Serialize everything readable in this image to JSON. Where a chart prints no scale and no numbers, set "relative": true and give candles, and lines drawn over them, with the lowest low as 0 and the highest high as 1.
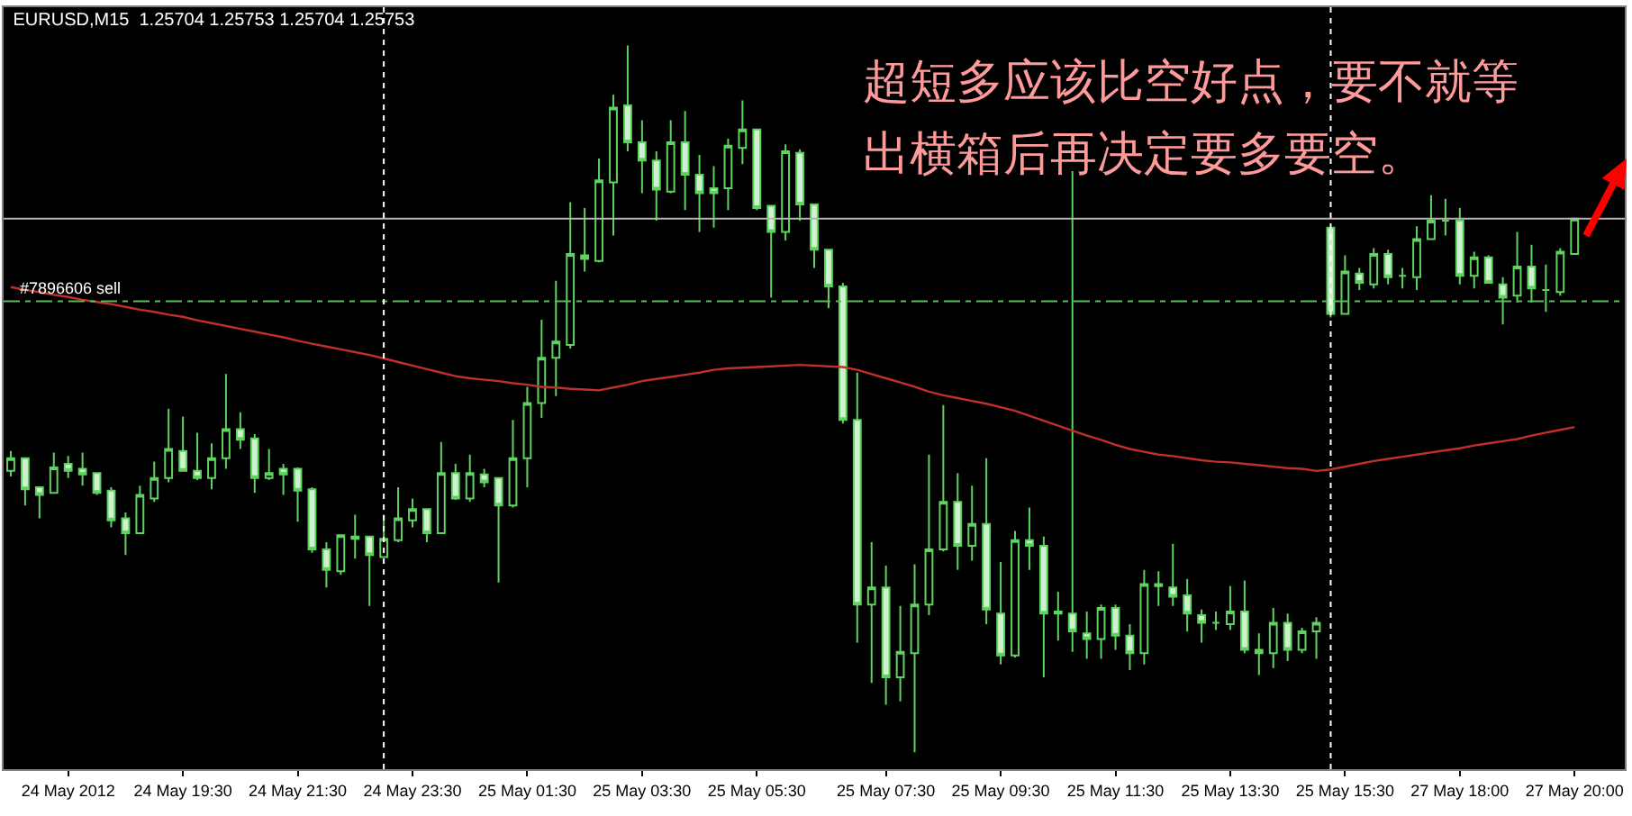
{
  "chart_data": {
    "type": "candlestick",
    "relative": true,
    "title": "EURUSD,M15  1.25704 1.25753 1.25704 1.25753",
    "color": "#5fd35f",
    "categories": [
      null,
      null,
      null,
      null,
      "24 May 2012",
      null,
      null,
      null,
      null,
      null,
      null,
      null,
      "24 May 19:30",
      null,
      null,
      null,
      null,
      null,
      null,
      null,
      "24 May 21:30",
      null,
      null,
      null,
      null,
      null,
      null,
      null,
      "24 May 23:30",
      null,
      null,
      null,
      null,
      null,
      null,
      null,
      "25 May 01:30",
      null,
      null,
      null,
      null,
      null,
      null,
      null,
      "25 May 03:30",
      null,
      null,
      null,
      null,
      null,
      null,
      null,
      "25 May 05:30",
      null,
      null,
      null,
      null,
      null,
      null,
      null,
      null,
      "25 May 07:30",
      null,
      null,
      null,
      null,
      null,
      null,
      null,
      "25 May 09:30",
      null,
      null,
      null,
      null,
      null,
      null,
      null,
      "25 May 11:30",
      null,
      null,
      null,
      null,
      null,
      null,
      null,
      "25 May 13:30",
      null,
      null,
      null,
      null,
      null,
      null,
      null,
      "25 May 15:30",
      null,
      null,
      null,
      null,
      null,
      null,
      null,
      "27 May 18:00",
      null,
      null,
      null,
      null,
      null,
      null,
      null,
      "27 May 20:00"
    ],
    "tick_labels": "x",
    "ohlc": [
      [
        0.398,
        0.426,
        0.39,
        0.416
      ],
      [
        0.416,
        0.416,
        0.349,
        0.372
      ],
      [
        0.375,
        0.375,
        0.331,
        0.364
      ],
      [
        0.367,
        0.424,
        0.367,
        0.403
      ],
      [
        0.408,
        0.419,
        0.388,
        0.398
      ],
      [
        0.401,
        0.424,
        0.377,
        0.393
      ],
      [
        0.395,
        0.395,
        0.364,
        0.367
      ],
      [
        0.37,
        0.375,
        0.318,
        0.328
      ],
      [
        0.331,
        0.339,
        0.279,
        0.31
      ],
      [
        0.31,
        0.377,
        0.31,
        0.364
      ],
      [
        0.359,
        0.411,
        0.354,
        0.388
      ],
      [
        0.388,
        0.486,
        0.382,
        0.429
      ],
      [
        0.426,
        0.475,
        0.398,
        0.398
      ],
      [
        0.398,
        0.452,
        0.385,
        0.388
      ],
      [
        0.388,
        0.437,
        0.372,
        0.416
      ],
      [
        0.416,
        0.535,
        0.401,
        0.457
      ],
      [
        0.457,
        0.481,
        0.429,
        0.442
      ],
      [
        0.444,
        0.45,
        0.367,
        0.388
      ],
      [
        0.388,
        0.429,
        0.385,
        0.395
      ],
      [
        0.401,
        0.408,
        0.364,
        0.393
      ],
      [
        0.401,
        0.403,
        0.326,
        0.37
      ],
      [
        0.372,
        0.375,
        0.282,
        0.287
      ],
      [
        0.287,
        0.297,
        0.233,
        0.258
      ],
      [
        0.256,
        0.307,
        0.251,
        0.307
      ],
      [
        0.302,
        0.336,
        0.274,
        0.305
      ],
      [
        0.305,
        0.305,
        0.207,
        0.279
      ],
      [
        0.276,
        0.336,
        0.276,
        0.302
      ],
      [
        0.3,
        0.375,
        0.297,
        0.331
      ],
      [
        0.328,
        0.359,
        0.318,
        0.344
      ],
      [
        0.344,
        0.344,
        0.297,
        0.31
      ],
      [
        0.31,
        0.439,
        0.31,
        0.395
      ],
      [
        0.395,
        0.408,
        0.357,
        0.359
      ],
      [
        0.359,
        0.421,
        0.354,
        0.395
      ],
      [
        0.393,
        0.401,
        0.375,
        0.382
      ],
      [
        0.388,
        0.388,
        0.24,
        0.349
      ],
      [
        0.349,
        0.47,
        0.346,
        0.416
      ],
      [
        0.416,
        0.517,
        0.375,
        0.494
      ],
      [
        0.494,
        0.612,
        0.473,
        0.558
      ],
      [
        0.558,
        0.667,
        0.504,
        0.581
      ],
      [
        0.576,
        0.778,
        0.571,
        0.705
      ],
      [
        0.703,
        0.77,
        0.68,
        0.698
      ],
      [
        0.695,
        0.84,
        0.693,
        0.809
      ],
      [
        0.806,
        0.93,
        0.731,
        0.912
      ],
      [
        0.915,
        1.0,
        0.85,
        0.863
      ],
      [
        0.863,
        0.894,
        0.791,
        0.837
      ],
      [
        0.837,
        0.85,
        0.752,
        0.796
      ],
      [
        0.793,
        0.894,
        0.791,
        0.863
      ],
      [
        0.863,
        0.907,
        0.767,
        0.817
      ],
      [
        0.817,
        0.845,
        0.736,
        0.791
      ],
      [
        0.798,
        0.829,
        0.742,
        0.791
      ],
      [
        0.798,
        0.868,
        0.767,
        0.858
      ],
      [
        0.855,
        0.922,
        0.832,
        0.881
      ],
      [
        0.881,
        0.881,
        0.767,
        0.77
      ],
      [
        0.773,
        0.773,
        0.643,
        0.736
      ],
      [
        0.736,
        0.86,
        0.724,
        0.85
      ],
      [
        0.848,
        0.853,
        0.752,
        0.775
      ],
      [
        0.775,
        0.775,
        0.685,
        0.711
      ],
      [
        0.711,
        0.711,
        0.628,
        0.659
      ],
      [
        0.659,
        0.664,
        0.465,
        0.47
      ],
      [
        0.47,
        0.537,
        0.155,
        0.209
      ],
      [
        0.209,
        0.297,
        0.098,
        0.233
      ],
      [
        0.233,
        0.264,
        0.067,
        0.106
      ],
      [
        0.106,
        0.207,
        0.072,
        0.142
      ],
      [
        0.14,
        0.266,
        0.0,
        0.209
      ],
      [
        0.209,
        0.421,
        0.194,
        0.287
      ],
      [
        0.287,
        0.491,
        0.284,
        0.354
      ],
      [
        0.354,
        0.395,
        0.258,
        0.292
      ],
      [
        0.292,
        0.377,
        0.271,
        0.323
      ],
      [
        0.323,
        0.416,
        0.181,
        0.202
      ],
      [
        0.196,
        0.269,
        0.124,
        0.137
      ],
      [
        0.137,
        0.313,
        0.134,
        0.3
      ],
      [
        0.3,
        0.346,
        0.258,
        0.292
      ],
      [
        0.292,
        0.305,
        0.106,
        0.196
      ],
      [
        0.199,
        0.227,
        0.158,
        0.196
      ],
      [
        0.196,
        0.822,
        0.142,
        0.171
      ],
      [
        0.168,
        0.199,
        0.132,
        0.16
      ],
      [
        0.16,
        0.209,
        0.132,
        0.204
      ],
      [
        0.204,
        0.209,
        0.145,
        0.165
      ],
      [
        0.165,
        0.181,
        0.116,
        0.14
      ],
      [
        0.14,
        0.258,
        0.124,
        0.238
      ],
      [
        0.238,
        0.256,
        0.207,
        0.235
      ],
      [
        0.233,
        0.295,
        0.207,
        0.22
      ],
      [
        0.222,
        0.245,
        0.171,
        0.196
      ],
      [
        0.194,
        0.202,
        0.155,
        0.183
      ],
      [
        0.183,
        0.199,
        0.173,
        0.183
      ],
      [
        0.181,
        0.235,
        0.173,
        0.199
      ],
      [
        0.199,
        0.243,
        0.14,
        0.145
      ],
      [
        0.145,
        0.168,
        0.109,
        0.14
      ],
      [
        0.14,
        0.204,
        0.119,
        0.183
      ],
      [
        0.183,
        0.196,
        0.129,
        0.145
      ],
      [
        0.145,
        0.176,
        0.14,
        0.171
      ],
      [
        0.171,
        0.191,
        0.132,
        0.183
      ],
      [
        0.742,
        0.742,
        0.615,
        0.62
      ],
      [
        0.62,
        0.703,
        0.62,
        0.68
      ],
      [
        0.677,
        0.685,
        0.654,
        0.664
      ],
      [
        0.662,
        0.713,
        0.656,
        0.705
      ],
      [
        0.705,
        0.711,
        0.662,
        0.672
      ],
      [
        0.674,
        0.685,
        0.656,
        0.674
      ],
      [
        0.672,
        0.744,
        0.654,
        0.726
      ],
      [
        0.726,
        0.788,
        0.726,
        0.752
      ],
      [
        0.752,
        0.783,
        0.731,
        0.752
      ],
      [
        0.752,
        0.77,
        0.662,
        0.674
      ],
      [
        0.674,
        0.708,
        0.656,
        0.7
      ],
      [
        0.7,
        0.703,
        0.664,
        0.664
      ],
      [
        0.662,
        0.672,
        0.605,
        0.643
      ],
      [
        0.646,
        0.736,
        0.636,
        0.687
      ],
      [
        0.687,
        0.718,
        0.636,
        0.656
      ],
      [
        0.654,
        0.69,
        0.623,
        0.654
      ],
      [
        0.651,
        0.713,
        0.646,
        0.708
      ],
      [
        0.705,
        0.755,
        0.705,
        0.755
      ]
    ],
    "series": [
      {
        "type": "line",
        "color": "#c0302c",
        "values": [
          0.658,
          0.654,
          0.651,
          0.647,
          0.644,
          0.64,
          0.637,
          0.634,
          0.63,
          0.626,
          0.623,
          0.619,
          0.616,
          0.611,
          0.607,
          0.603,
          0.599,
          0.595,
          0.591,
          0.587,
          0.582,
          0.578,
          0.574,
          0.57,
          0.566,
          0.562,
          0.557,
          0.552,
          0.547,
          0.542,
          0.537,
          0.532,
          0.529,
          0.527,
          0.525,
          0.522,
          0.52,
          0.517,
          0.516,
          0.514,
          0.513,
          0.512,
          0.516,
          0.52,
          0.525,
          0.528,
          0.531,
          0.534,
          0.537,
          0.541,
          0.543,
          0.544,
          0.545,
          0.546,
          0.547,
          0.548,
          0.547,
          0.546,
          0.545,
          0.541,
          0.535,
          0.529,
          0.523,
          0.517,
          0.51,
          0.505,
          0.501,
          0.497,
          0.493,
          0.488,
          0.483,
          0.476,
          0.469,
          0.462,
          0.455,
          0.448,
          0.442,
          0.435,
          0.429,
          0.425,
          0.421,
          0.419,
          0.416,
          0.413,
          0.411,
          0.41,
          0.408,
          0.406,
          0.404,
          0.402,
          0.401,
          0.398,
          0.4,
          0.404,
          0.408,
          0.412,
          0.415,
          0.418,
          0.421,
          0.424,
          0.427,
          0.43,
          0.434,
          0.437,
          0.44,
          0.443,
          0.448,
          0.452,
          0.456,
          0.46
        ]
      }
    ],
    "ref_lines": [
      {
        "axis": "y",
        "value": 0.755,
        "color": "#b4b4b4",
        "line_style": "solid"
      },
      {
        "axis": "y",
        "value": 0.638,
        "label": "#7896606 sell",
        "color": "#5fb85f",
        "line_style": "dashed"
      }
    ],
    "annotations": [
      "超短多应该比空好点，要不就等",
      "出横箱后再决定要多要空。"
    ]
  }
}
